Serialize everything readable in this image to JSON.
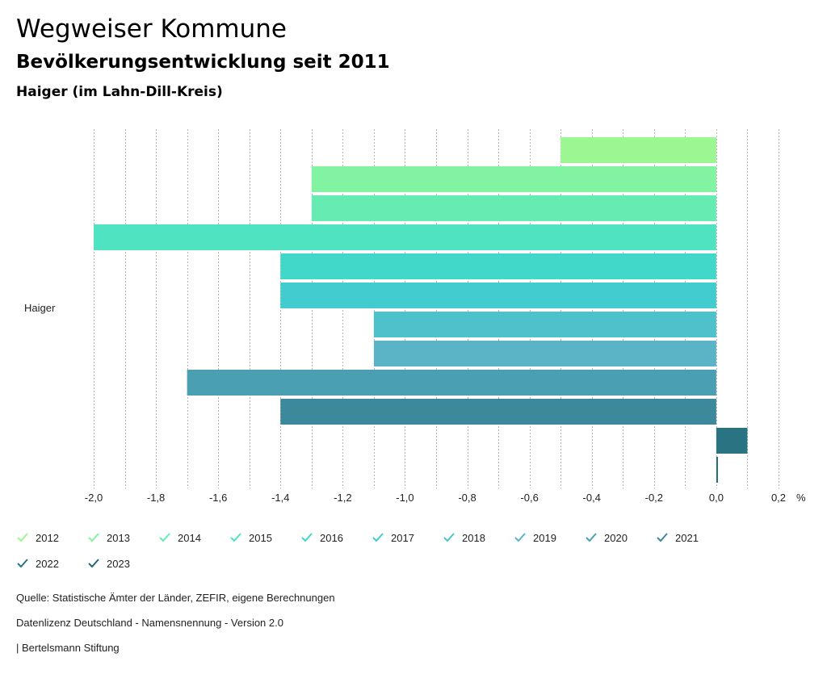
{
  "header": {
    "title": "Wegweiser Kommune",
    "subtitle": "Bevölkerungsentwicklung seit 2011",
    "region": "Haiger (im Lahn-Dill-Kreis)"
  },
  "chart_data": {
    "type": "bar",
    "orientation": "horizontal",
    "categories": [
      "Haiger"
    ],
    "series": [
      {
        "name": "2012",
        "values": [
          -0.5
        ],
        "color": "#9cf793"
      },
      {
        "name": "2013",
        "values": [
          -1.3
        ],
        "color": "#81f3a1"
      },
      {
        "name": "2014",
        "values": [
          -1.3
        ],
        "color": "#66ebb3"
      },
      {
        "name": "2015",
        "values": [
          -2.0
        ],
        "color": "#50e3c2"
      },
      {
        "name": "2016",
        "values": [
          -1.4
        ],
        "color": "#42d8c9"
      },
      {
        "name": "2017",
        "values": [
          -1.4
        ],
        "color": "#43cccf"
      },
      {
        "name": "2018",
        "values": [
          -1.1
        ],
        "color": "#4fc1cb"
      },
      {
        "name": "2019",
        "values": [
          -1.1
        ],
        "color": "#5bb4c6"
      },
      {
        "name": "2020",
        "values": [
          -1.7
        ],
        "color": "#4b9fb2"
      },
      {
        "name": "2021",
        "values": [
          -1.4
        ],
        "color": "#3b899a"
      },
      {
        "name": "2022",
        "values": [
          0.1
        ],
        "color": "#2a7382"
      },
      {
        "name": "2023",
        "values": [
          0.0
        ],
        "color": "#1f6a6e"
      }
    ],
    "xlim": [
      -2.0,
      0.2
    ],
    "ticks": [
      -2.0,
      -1.8,
      -1.6,
      -1.4,
      -1.2,
      -1.0,
      -0.8,
      -0.6,
      -0.4,
      -0.2,
      0.0,
      0.2
    ],
    "tick_labels": [
      "-2,0",
      "-1,8",
      "-1,6",
      "-1,4",
      "-1,2",
      "-1,0",
      "-0,8",
      "-0,6",
      "-0,4",
      "-0,2",
      "0,0",
      "0,2"
    ],
    "unit_label": "%",
    "grid": true,
    "legend_position": "bottom"
  },
  "legend": {
    "items": [
      "2012",
      "2013",
      "2014",
      "2015",
      "2016",
      "2017",
      "2018",
      "2019",
      "2020",
      "2021",
      "2022",
      "2023"
    ]
  },
  "footer": {
    "source": "Quelle: Statistische Ämter der Länder, ZEFIR, eigene Berechnungen",
    "license": "Datenlizenz Deutschland - Namensnennung - Version 2.0",
    "publisher": "| Bertelsmann Stiftung"
  }
}
